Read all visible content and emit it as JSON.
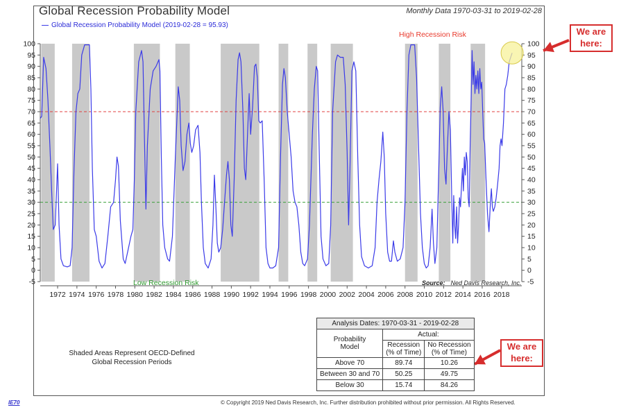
{
  "header": {
    "title": "Global Recession Probability Model",
    "subtitle": "Monthly Data 1970-03-31 to 2019-02-28",
    "legend_label": "Global Recession Probability Model (2019-02-28 = 95.93)"
  },
  "labels": {
    "high_risk": "High Recession Risk",
    "low_risk": "Low Recession Risk",
    "source_label": "Source:",
    "source_value": "Ned Davis Research, Inc.",
    "note_line1": "Shaded Areas Represent OECD-Defined",
    "note_line2": "Global Recession Periods",
    "copyright": "© Copyright 2019 Ned Davis Research, Inc. Further distribution prohibited without prior permission. All Rights Reserved.",
    "logo": "IE70"
  },
  "callouts": {
    "top_line1": "We are",
    "top_line2": "here:",
    "bottom_line1": "We are",
    "bottom_line2": "here:"
  },
  "stats_table": {
    "title": "Analysis Dates: 1970-03-31 - 2019-02-28",
    "actual_header": "Actual:",
    "model_header_line1": "Probability",
    "model_header_line2": "Model",
    "col1_line1": "Recession",
    "col1_line2": "(% of Time)",
    "col2_line1": "No Recession",
    "col2_line2": "(% of Time)",
    "rows": [
      {
        "label": "Above 70",
        "recession": "89.74",
        "no_recession": "10.26"
      },
      {
        "label": "Between 30 and 70",
        "recession": "50.25",
        "no_recession": "49.75"
      },
      {
        "label": "Below 30",
        "recession": "15.74",
        "no_recession": "84.26"
      }
    ]
  },
  "colors": {
    "line": "#3a3ae8",
    "shade": "#c9c9c9",
    "high_threshold": "#e04040",
    "low_threshold": "#3aa03a",
    "callout": "#d62d2d",
    "highlight": "#f7f29a"
  },
  "chart_data": {
    "type": "line",
    "title": "Global Recession Probability Model",
    "subtitle": "Monthly Data 1970-03-31 to 2019-02-28",
    "xlabel": "",
    "ylabel": "",
    "xlim": [
      1970.2,
      2020.1
    ],
    "ylim": [
      -5,
      100
    ],
    "x_ticks": [
      1972,
      1974,
      1976,
      1978,
      1980,
      1982,
      1984,
      1986,
      1988,
      1990,
      1992,
      1994,
      1996,
      1998,
      2000,
      2002,
      2004,
      2006,
      2008,
      2010,
      2012,
      2014,
      2016,
      2018
    ],
    "y_ticks": [
      -5,
      0,
      5,
      10,
      15,
      20,
      25,
      30,
      35,
      40,
      45,
      50,
      55,
      60,
      65,
      70,
      75,
      80,
      85,
      90,
      95,
      100
    ],
    "thresholds": [
      {
        "value": 70,
        "style": "dashed",
        "color": "red"
      },
      {
        "value": 30,
        "style": "dashed",
        "color": "green"
      }
    ],
    "shaded_periods": [
      [
        1970.3,
        1971.7
      ],
      [
        1973.5,
        1975.3
      ],
      [
        1979.9,
        1982.6
      ],
      [
        1984.2,
        1985.7
      ],
      [
        1988.9,
        1992.9
      ],
      [
        1994.9,
        1995.9
      ],
      [
        1997.9,
        1998.9
      ],
      [
        2000.3,
        2002.6
      ],
      [
        2008.0,
        2009.3
      ],
      [
        2011.5,
        2012.7
      ],
      [
        2014.8,
        2016.3
      ]
    ],
    "series": [
      {
        "name": "Global Recession Probability Model",
        "current_value": 95.93,
        "current_date": "2019-02-28",
        "points": [
          [
            1970.2,
            67
          ],
          [
            1970.35,
            68
          ],
          [
            1970.55,
            94
          ],
          [
            1970.8,
            89
          ],
          [
            1971.0,
            75
          ],
          [
            1971.2,
            55
          ],
          [
            1971.4,
            33
          ],
          [
            1971.55,
            18
          ],
          [
            1971.75,
            20
          ],
          [
            1972.0,
            47
          ],
          [
            1972.15,
            20
          ],
          [
            1972.35,
            5
          ],
          [
            1972.6,
            2
          ],
          [
            1973.0,
            1.5
          ],
          [
            1973.3,
            2
          ],
          [
            1973.5,
            10
          ],
          [
            1973.7,
            45
          ],
          [
            1973.9,
            70
          ],
          [
            1974.1,
            78
          ],
          [
            1974.3,
            80
          ],
          [
            1974.5,
            95
          ],
          [
            1974.8,
            99.5
          ],
          [
            1975.3,
            99.5
          ],
          [
            1975.45,
            80
          ],
          [
            1975.6,
            45
          ],
          [
            1975.8,
            18
          ],
          [
            1976.0,
            15
          ],
          [
            1976.3,
            4
          ],
          [
            1976.6,
            1
          ],
          [
            1976.9,
            3
          ],
          [
            1977.2,
            15
          ],
          [
            1977.5,
            28
          ],
          [
            1977.8,
            30
          ],
          [
            1978.0,
            40
          ],
          [
            1978.15,
            50
          ],
          [
            1978.3,
            46
          ],
          [
            1978.5,
            22
          ],
          [
            1978.8,
            5
          ],
          [
            1979.0,
            3
          ],
          [
            1979.3,
            9
          ],
          [
            1979.6,
            15
          ],
          [
            1979.8,
            18
          ],
          [
            1979.95,
            40
          ],
          [
            1980.1,
            70
          ],
          [
            1980.4,
            92
          ],
          [
            1980.7,
            97
          ],
          [
            1980.85,
            92
          ],
          [
            1981.0,
            58
          ],
          [
            1981.15,
            27
          ],
          [
            1981.3,
            55
          ],
          [
            1981.6,
            80
          ],
          [
            1981.9,
            88
          ],
          [
            1982.2,
            90
          ],
          [
            1982.5,
            93
          ],
          [
            1982.6,
            88
          ],
          [
            1982.75,
            50
          ],
          [
            1982.9,
            20
          ],
          [
            1983.1,
            10
          ],
          [
            1983.4,
            5
          ],
          [
            1983.6,
            4
          ],
          [
            1983.9,
            15
          ],
          [
            1984.2,
            50
          ],
          [
            1984.5,
            81
          ],
          [
            1984.65,
            75
          ],
          [
            1984.8,
            55
          ],
          [
            1985.0,
            44
          ],
          [
            1985.2,
            48
          ],
          [
            1985.4,
            60
          ],
          [
            1985.6,
            65
          ],
          [
            1985.75,
            56
          ],
          [
            1985.9,
            52
          ],
          [
            1986.1,
            55
          ],
          [
            1986.3,
            62
          ],
          [
            1986.55,
            64
          ],
          [
            1986.75,
            52
          ],
          [
            1986.9,
            30
          ],
          [
            1987.1,
            10
          ],
          [
            1987.3,
            3
          ],
          [
            1987.6,
            1
          ],
          [
            1987.9,
            5
          ],
          [
            1988.1,
            20
          ],
          [
            1988.25,
            42
          ],
          [
            1988.4,
            28
          ],
          [
            1988.55,
            12
          ],
          [
            1988.7,
            8
          ],
          [
            1988.9,
            10
          ],
          [
            1989.1,
            18
          ],
          [
            1989.3,
            30
          ],
          [
            1989.5,
            42
          ],
          [
            1989.65,
            48
          ],
          [
            1989.8,
            40
          ],
          [
            1989.95,
            20
          ],
          [
            1990.1,
            15
          ],
          [
            1990.3,
            40
          ],
          [
            1990.5,
            75
          ],
          [
            1990.7,
            93
          ],
          [
            1990.85,
            96
          ],
          [
            1991.0,
            92
          ],
          [
            1991.2,
            70
          ],
          [
            1991.35,
            45
          ],
          [
            1991.5,
            40
          ],
          [
            1991.7,
            62
          ],
          [
            1991.85,
            78
          ],
          [
            1992.0,
            60
          ],
          [
            1992.2,
            72
          ],
          [
            1992.4,
            90
          ],
          [
            1992.55,
            91
          ],
          [
            1992.7,
            85
          ],
          [
            1992.85,
            66
          ],
          [
            1993.0,
            65
          ],
          [
            1993.2,
            66
          ],
          [
            1993.4,
            40
          ],
          [
            1993.6,
            10
          ],
          [
            1993.8,
            3
          ],
          [
            1994.0,
            1
          ],
          [
            1994.3,
            1
          ],
          [
            1994.6,
            2
          ],
          [
            1994.9,
            10
          ],
          [
            1995.1,
            50
          ],
          [
            1995.3,
            82
          ],
          [
            1995.45,
            89
          ],
          [
            1995.6,
            85
          ],
          [
            1995.8,
            70
          ],
          [
            1996.0,
            60
          ],
          [
            1996.2,
            50
          ],
          [
            1996.4,
            35
          ],
          [
            1996.6,
            30
          ],
          [
            1996.8,
            28
          ],
          [
            1997.0,
            20
          ],
          [
            1997.2,
            8
          ],
          [
            1997.4,
            3
          ],
          [
            1997.6,
            2
          ],
          [
            1997.9,
            5
          ],
          [
            1998.1,
            20
          ],
          [
            1998.4,
            60
          ],
          [
            1998.6,
            80
          ],
          [
            1998.8,
            90
          ],
          [
            1998.95,
            88
          ],
          [
            1999.1,
            55
          ],
          [
            1999.3,
            15
          ],
          [
            1999.5,
            5
          ],
          [
            1999.8,
            2
          ],
          [
            2000.1,
            3
          ],
          [
            2000.3,
            20
          ],
          [
            2000.5,
            70
          ],
          [
            2000.8,
            92
          ],
          [
            2001.0,
            95
          ],
          [
            2001.3,
            94
          ],
          [
            2001.6,
            94
          ],
          [
            2001.8,
            82
          ],
          [
            2002.0,
            52
          ],
          [
            2002.15,
            20
          ],
          [
            2002.3,
            45
          ],
          [
            2002.5,
            88
          ],
          [
            2002.7,
            92
          ],
          [
            2002.9,
            88
          ],
          [
            2003.1,
            50
          ],
          [
            2003.3,
            20
          ],
          [
            2003.5,
            6
          ],
          [
            2003.8,
            2
          ],
          [
            2004.2,
            1
          ],
          [
            2004.6,
            2
          ],
          [
            2004.9,
            10
          ],
          [
            2005.1,
            30
          ],
          [
            2005.3,
            40
          ],
          [
            2005.5,
            48
          ],
          [
            2005.7,
            61
          ],
          [
            2005.85,
            50
          ],
          [
            2006.0,
            25
          ],
          [
            2006.2,
            8
          ],
          [
            2006.4,
            4
          ],
          [
            2006.6,
            4
          ],
          [
            2006.8,
            13
          ],
          [
            2006.95,
            8
          ],
          [
            2007.2,
            4
          ],
          [
            2007.5,
            5
          ],
          [
            2007.8,
            10
          ],
          [
            2008.0,
            30
          ],
          [
            2008.2,
            70
          ],
          [
            2008.4,
            95
          ],
          [
            2008.6,
            99.5
          ],
          [
            2009.0,
            99.5
          ],
          [
            2009.2,
            85
          ],
          [
            2009.4,
            55
          ],
          [
            2009.6,
            25
          ],
          [
            2009.8,
            10
          ],
          [
            2010.0,
            3
          ],
          [
            2010.2,
            1
          ],
          [
            2010.4,
            2
          ],
          [
            2010.6,
            10
          ],
          [
            2010.8,
            27
          ],
          [
            2010.95,
            12
          ],
          [
            2011.1,
            3
          ],
          [
            2011.3,
            10
          ],
          [
            2011.5,
            45
          ],
          [
            2011.65,
            72
          ],
          [
            2011.8,
            81
          ],
          [
            2011.95,
            70
          ],
          [
            2012.1,
            45
          ],
          [
            2012.25,
            38
          ],
          [
            2012.4,
            55
          ],
          [
            2012.55,
            70
          ],
          [
            2012.7,
            62
          ],
          [
            2012.85,
            30
          ],
          [
            2012.95,
            12
          ],
          [
            2013.05,
            33
          ],
          [
            2013.15,
            20
          ],
          [
            2013.25,
            14
          ],
          [
            2013.35,
            28
          ],
          [
            2013.45,
            12
          ],
          [
            2013.55,
            20
          ],
          [
            2013.65,
            32
          ],
          [
            2013.75,
            28
          ],
          [
            2013.85,
            37
          ],
          [
            2013.95,
            45
          ],
          [
            2014.05,
            35
          ],
          [
            2014.15,
            50
          ],
          [
            2014.25,
            42
          ],
          [
            2014.35,
            52
          ],
          [
            2014.45,
            48
          ],
          [
            2014.55,
            32
          ],
          [
            2014.65,
            28
          ],
          [
            2014.75,
            55
          ],
          [
            2014.85,
            75
          ],
          [
            2014.95,
            97
          ],
          [
            2015.05,
            82
          ],
          [
            2015.15,
            92
          ],
          [
            2015.25,
            78
          ],
          [
            2015.35,
            86
          ],
          [
            2015.45,
            80
          ],
          [
            2015.55,
            88
          ],
          [
            2015.65,
            78
          ],
          [
            2015.75,
            89
          ],
          [
            2015.85,
            80
          ],
          [
            2015.95,
            83
          ],
          [
            2016.05,
            70
          ],
          [
            2016.15,
            58
          ],
          [
            2016.25,
            56
          ],
          [
            2016.4,
            40
          ],
          [
            2016.55,
            25
          ],
          [
            2016.7,
            17
          ],
          [
            2016.85,
            30
          ],
          [
            2016.95,
            36
          ],
          [
            2017.05,
            28
          ],
          [
            2017.15,
            26
          ],
          [
            2017.3,
            28
          ],
          [
            2017.45,
            32
          ],
          [
            2017.6,
            38
          ],
          [
            2017.75,
            45
          ],
          [
            2017.85,
            55
          ],
          [
            2017.95,
            58
          ],
          [
            2018.05,
            55
          ],
          [
            2018.2,
            65
          ],
          [
            2018.35,
            80
          ],
          [
            2018.5,
            82
          ],
          [
            2018.65,
            86
          ],
          [
            2018.8,
            92
          ],
          [
            2018.95,
            94
          ],
          [
            2019.1,
            95.93
          ]
        ]
      }
    ]
  }
}
